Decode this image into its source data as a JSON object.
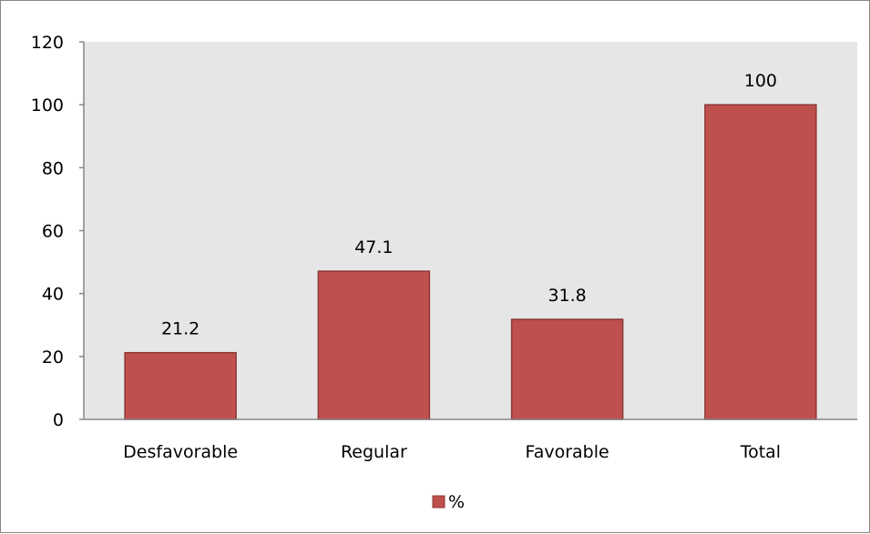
{
  "chart_data": {
    "type": "bar",
    "categories": [
      "Desfavorable",
      "Regular",
      "Favorable",
      "Total"
    ],
    "series": [
      {
        "name": "%",
        "values": [
          21.2,
          47.1,
          31.8,
          100
        ]
      }
    ],
    "data_labels": [
      "21.2",
      "47.1",
      "31.8",
      "100"
    ],
    "yticks": [
      0,
      20,
      40,
      60,
      80,
      100,
      120
    ],
    "ylim": [
      0,
      120
    ],
    "grid": false,
    "legend": {
      "position": "bottom",
      "entries": [
        "%"
      ]
    },
    "colors": {
      "bar": "#C0504D",
      "bar_border": "#8C3836",
      "plot_area": "#E6E6E6",
      "axis": "#868686"
    }
  }
}
